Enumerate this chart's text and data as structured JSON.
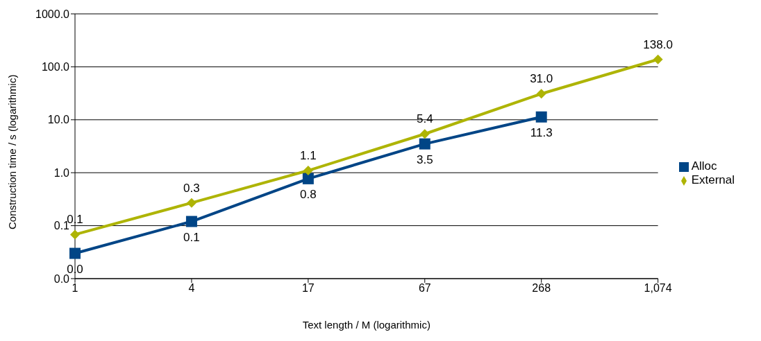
{
  "chart_data": {
    "type": "line",
    "xlabel": "Text length / M (logarithmic)",
    "ylabel": "Construction time / s (logarithmic)",
    "categories": [
      "1",
      "4",
      "17",
      "67",
      "268",
      "1,074"
    ],
    "series": [
      {
        "name": "Alloc",
        "color": "#004586",
        "marker": "square",
        "values": [
          0.03,
          0.12,
          0.77,
          3.5,
          11.3,
          null
        ],
        "value_labels": [
          "0.0",
          "0.1",
          "0.8",
          "3.5",
          "11.3",
          null
        ]
      },
      {
        "name": "External",
        "color": "#aeb404",
        "marker": "diamond",
        "values": [
          0.068,
          0.27,
          1.1,
          5.4,
          31.0,
          138.0
        ],
        "value_labels": [
          "0.1",
          "0.3",
          "1.1",
          "5.4",
          "31.0",
          "138.0"
        ]
      }
    ],
    "log": "y",
    "ylim": [
      0.01,
      1000
    ],
    "yticks": [
      {
        "value": 0.01,
        "label": "0.0"
      },
      {
        "value": 0.1,
        "label": "0.1"
      },
      {
        "value": 1,
        "label": "1.0"
      },
      {
        "value": 10,
        "label": "10.0"
      },
      {
        "value": 100,
        "label": "100.0"
      },
      {
        "value": 1000,
        "label": "1000.0"
      }
    ],
    "grid": "y",
    "legend": "right"
  }
}
